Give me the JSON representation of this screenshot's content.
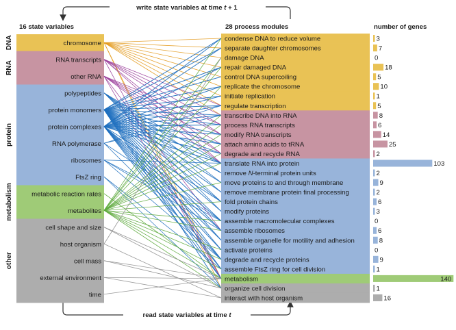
{
  "top_label": "write state variables at time t + 1",
  "bottom_label": "read state variables at time t",
  "headers": {
    "state_variables": "16 state variables",
    "process_modules": "28 process modules",
    "number_of_genes": "number of genes"
  },
  "categories": [
    {
      "label": "DNA",
      "color": "#E9C255"
    },
    {
      "label": "RNA",
      "color": "#C794A2"
    },
    {
      "label": "protein",
      "color": "#98B4DA"
    },
    {
      "label": "metabolism",
      "color": "#9FCB77"
    },
    {
      "label": "other",
      "color": "#ADADAD"
    }
  ],
  "state_variables": [
    {
      "label": "chromosome",
      "category": "DNA"
    },
    {
      "label": "RNA transcripts",
      "category": "RNA"
    },
    {
      "label": "other RNA",
      "category": "RNA"
    },
    {
      "label": "polypeptides",
      "category": "protein"
    },
    {
      "label": "protein monomers",
      "category": "protein"
    },
    {
      "label": "protein complexes",
      "category": "protein"
    },
    {
      "label": "RNA polymerase",
      "category": "protein"
    },
    {
      "label": "ribosomes",
      "category": "protein"
    },
    {
      "label": "FtsZ ring",
      "category": "protein"
    },
    {
      "label": "metabolic reaction rates",
      "category": "metabolism"
    },
    {
      "label": "metabolites",
      "category": "metabolism"
    },
    {
      "label": "cell shape and size",
      "category": "other"
    },
    {
      "label": "host organism",
      "category": "other"
    },
    {
      "label": "cell mass",
      "category": "other"
    },
    {
      "label": "external environment",
      "category": "other"
    },
    {
      "label": "time",
      "category": "other"
    }
  ],
  "process_modules": [
    {
      "label": "condense DNA to reduce volume",
      "category": "DNA",
      "genes": 3
    },
    {
      "label": "separate daughter chromosomes",
      "category": "DNA",
      "genes": 7
    },
    {
      "label": "damage DNA",
      "category": "DNA",
      "genes": 0
    },
    {
      "label": "repair damaged DNA",
      "category": "DNA",
      "genes": 18
    },
    {
      "label": "control DNA supercoiling",
      "category": "DNA",
      "genes": 5
    },
    {
      "label": "replicate the chromosome",
      "category": "DNA",
      "genes": 10
    },
    {
      "label": "initiate replication",
      "category": "DNA",
      "genes": 1
    },
    {
      "label": "regulate transcription",
      "category": "DNA",
      "genes": 5
    },
    {
      "label": "transcribe DNA into RNA",
      "category": "RNA",
      "genes": 8
    },
    {
      "label": "process RNA transcripts",
      "category": "RNA",
      "genes": 6
    },
    {
      "label": "modify RNA transcripts",
      "category": "RNA",
      "genes": 14
    },
    {
      "label": "attach amino acids to tRNA",
      "category": "RNA",
      "genes": 25
    },
    {
      "label": "degrade and recycle RNA",
      "category": "RNA",
      "genes": 2
    },
    {
      "label": "translate RNA into protein",
      "category": "protein",
      "genes": 103
    },
    {
      "label": "remove N-terminal protein units",
      "category": "protein",
      "genes": 2
    },
    {
      "label": "move proteins to and through membrane",
      "category": "protein",
      "genes": 9
    },
    {
      "label": "remove membrane protein final processing",
      "category": "protein",
      "genes": 2
    },
    {
      "label": "fold protein chains",
      "category": "protein",
      "genes": 6
    },
    {
      "label": "modify proteins",
      "category": "protein",
      "genes": 3
    },
    {
      "label": "assemble macromolecular complexes",
      "category": "protein",
      "genes": 0
    },
    {
      "label": "assemble ribosomes",
      "category": "protein",
      "genes": 6
    },
    {
      "label": "assemble organelle for motility and adhesion",
      "category": "protein",
      "genes": 8
    },
    {
      "label": "activate proteins",
      "category": "protein",
      "genes": 0
    },
    {
      "label": "degrade and recycle proteins",
      "category": "protein",
      "genes": 9
    },
    {
      "label": "assemble FtsZ ring for cell division",
      "category": "protein",
      "genes": 1
    },
    {
      "label": "metabolism",
      "category": "metabolism",
      "genes": 140
    },
    {
      "label": "organize cell division",
      "category": "other",
      "genes": 1
    },
    {
      "label": "interact with host organism",
      "category": "other",
      "genes": 16
    }
  ],
  "connection_colors": {
    "DNA": "#E39A1D",
    "RNA": "#9B3F9B",
    "protein": "#1E6FBF",
    "metabolism": "#5DAA3C",
    "other": "#8C8C8C"
  },
  "connections": [
    [
      0,
      0
    ],
    [
      0,
      1
    ],
    [
      0,
      2
    ],
    [
      0,
      3
    ],
    [
      0,
      4
    ],
    [
      0,
      5
    ],
    [
      0,
      6
    ],
    [
      0,
      7
    ],
    [
      0,
      8
    ],
    [
      0,
      25
    ],
    [
      0,
      26
    ],
    [
      1,
      8
    ],
    [
      1,
      9
    ],
    [
      1,
      10
    ],
    [
      1,
      12
    ],
    [
      1,
      13
    ],
    [
      1,
      7
    ],
    [
      1,
      25
    ],
    [
      2,
      9
    ],
    [
      2,
      10
    ],
    [
      2,
      11
    ],
    [
      2,
      12
    ],
    [
      2,
      13
    ],
    [
      2,
      20
    ],
    [
      2,
      25
    ],
    [
      3,
      13
    ],
    [
      3,
      14
    ],
    [
      3,
      15
    ],
    [
      3,
      16
    ],
    [
      3,
      17
    ],
    [
      3,
      18
    ],
    [
      4,
      0
    ],
    [
      4,
      1
    ],
    [
      4,
      3
    ],
    [
      4,
      4
    ],
    [
      4,
      5
    ],
    [
      4,
      6
    ],
    [
      4,
      7
    ],
    [
      4,
      8
    ],
    [
      4,
      9
    ],
    [
      4,
      10
    ],
    [
      4,
      11
    ],
    [
      4,
      12
    ],
    [
      4,
      13
    ],
    [
      4,
      14
    ],
    [
      4,
      15
    ],
    [
      4,
      16
    ],
    [
      4,
      17
    ],
    [
      4,
      18
    ],
    [
      4,
      19
    ],
    [
      4,
      20
    ],
    [
      4,
      21
    ],
    [
      4,
      22
    ],
    [
      4,
      23
    ],
    [
      4,
      24
    ],
    [
      4,
      25
    ],
    [
      4,
      26
    ],
    [
      5,
      0
    ],
    [
      5,
      1
    ],
    [
      5,
      3
    ],
    [
      5,
      5
    ],
    [
      5,
      6
    ],
    [
      5,
      7
    ],
    [
      5,
      8
    ],
    [
      5,
      9
    ],
    [
      5,
      10
    ],
    [
      5,
      11
    ],
    [
      5,
      12
    ],
    [
      5,
      13
    ],
    [
      5,
      17
    ],
    [
      5,
      19
    ],
    [
      5,
      20
    ],
    [
      5,
      21
    ],
    [
      5,
      22
    ],
    [
      5,
      23
    ],
    [
      5,
      24
    ],
    [
      5,
      25
    ],
    [
      6,
      8
    ],
    [
      6,
      7
    ],
    [
      6,
      19
    ],
    [
      6,
      23
    ],
    [
      7,
      13
    ],
    [
      7,
      19
    ],
    [
      7,
      20
    ],
    [
      7,
      23
    ],
    [
      8,
      24
    ],
    [
      8,
      26
    ],
    [
      9,
      25
    ],
    [
      10,
      0
    ],
    [
      10,
      2
    ],
    [
      10,
      3
    ],
    [
      10,
      5
    ],
    [
      10,
      8
    ],
    [
      10,
      9
    ],
    [
      10,
      10
    ],
    [
      10,
      11
    ],
    [
      10,
      12
    ],
    [
      10,
      13
    ],
    [
      10,
      15
    ],
    [
      10,
      17
    ],
    [
      10,
      19
    ],
    [
      10,
      20
    ],
    [
      10,
      22
    ],
    [
      10,
      23
    ],
    [
      10,
      24
    ],
    [
      10,
      25
    ],
    [
      10,
      26
    ],
    [
      11,
      26
    ],
    [
      11,
      25
    ],
    [
      12,
      27
    ],
    [
      12,
      2
    ],
    [
      13,
      25
    ],
    [
      13,
      26
    ],
    [
      14,
      25
    ],
    [
      14,
      27
    ],
    [
      15,
      25
    ]
  ]
}
